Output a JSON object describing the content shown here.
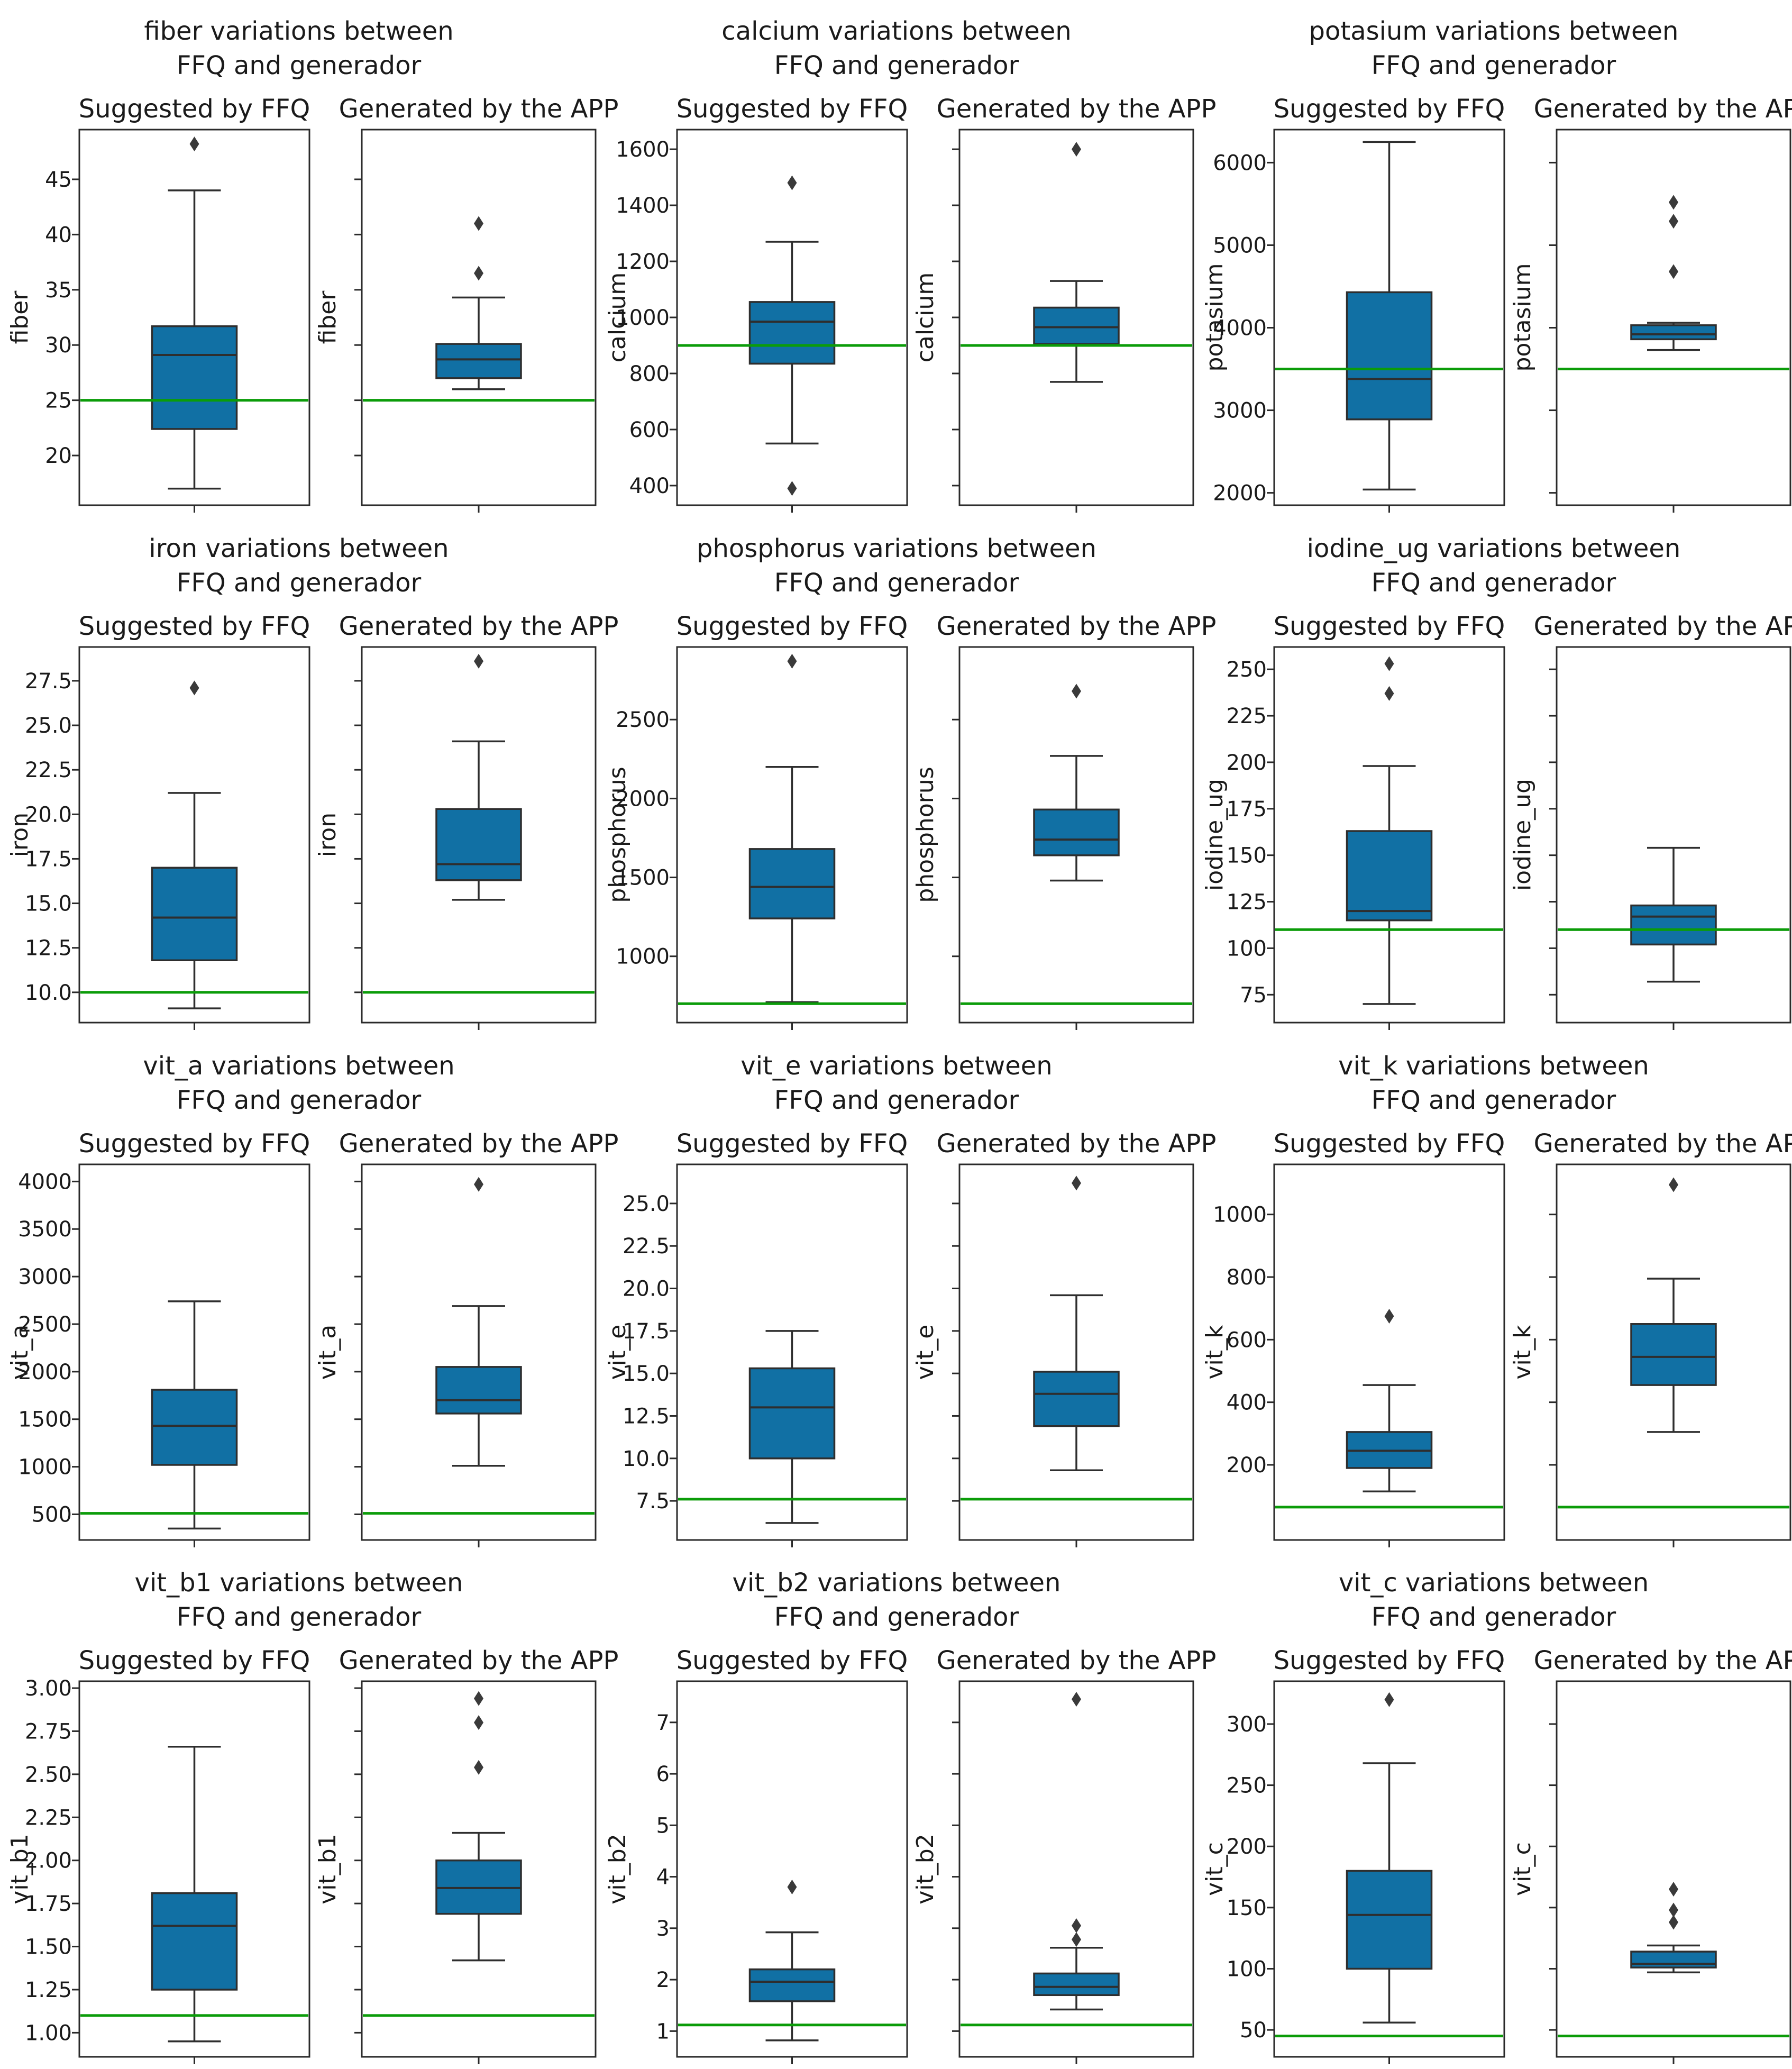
{
  "figure": {
    "description": "Grid of 12 paired box plots comparing nutrient distributions between FFQ suggestions and APP generated menus",
    "rows": 4,
    "cols": 3
  },
  "subplot_titles": {
    "left": "Suggested by FFQ",
    "right": "Generated by the APP"
  },
  "colors": {
    "box_fill": "#1170a4",
    "box_edge": "#2e2e2e",
    "median": "#2e2e2e",
    "whisker": "#2e2e2e",
    "outlier": "#3a3a3a",
    "reference_line": "#0b9c09",
    "spine": "#2a2a2a",
    "text": "#1a1a1a",
    "background": "#ffffff"
  },
  "chart_data": [
    {
      "type": "boxplot",
      "nutrient": "fiber",
      "title": "fiber variations between\nFFQ and generador",
      "title_lines": [
        "fiber variations between",
        "FFQ and generador"
      ],
      "ylabel": "fiber",
      "ylim": [
        15.5,
        49.5
      ],
      "yticks": [
        20,
        25,
        30,
        35,
        40,
        45
      ],
      "yticklabels": [
        "20",
        "25",
        "30",
        "35",
        "40",
        "45"
      ],
      "ref_line": 25,
      "series": [
        {
          "name": "Suggested by FFQ",
          "whislo": 17.0,
          "q1": 22.4,
          "med": 29.1,
          "q3": 31.7,
          "whishi": 44.0,
          "outliers": [
            48.2
          ]
        },
        {
          "name": "Generated by the APP",
          "whislo": 26.0,
          "q1": 27.0,
          "med": 28.7,
          "q3": 30.1,
          "whishi": 34.3,
          "outliers": [
            36.5,
            41.0
          ]
        }
      ]
    },
    {
      "type": "boxplot",
      "nutrient": "calcium",
      "title": "calcium variations between\nFFQ and generador",
      "title_lines": [
        "calcium variations between",
        "FFQ and generador"
      ],
      "ylabel": "calcium",
      "ylim": [
        330,
        1670
      ],
      "yticks": [
        400,
        600,
        800,
        1000,
        1200,
        1400,
        1600
      ],
      "yticklabels": [
        "400",
        "600",
        "800",
        "1000",
        "1200",
        "1400",
        "1600"
      ],
      "ref_line": 900,
      "series": [
        {
          "name": "Suggested by FFQ",
          "whislo": 550,
          "q1": 835,
          "med": 985,
          "q3": 1055,
          "whishi": 1270,
          "outliers": [
            390,
            1480
          ]
        },
        {
          "name": "Generated by the APP",
          "whislo": 770,
          "q1": 905,
          "med": 965,
          "q3": 1035,
          "whishi": 1130,
          "outliers": [
            1600
          ]
        }
      ]
    },
    {
      "type": "boxplot",
      "nutrient": "potasium",
      "title": "potasium variations between\nFFQ and generador",
      "title_lines": [
        "potasium variations between",
        "FFQ and generador"
      ],
      "ylabel": "potasium",
      "ylim": [
        1850,
        6400
      ],
      "yticks": [
        2000,
        3000,
        4000,
        5000,
        6000
      ],
      "yticklabels": [
        "2000",
        "3000",
        "4000",
        "5000",
        "6000"
      ],
      "ref_line": 3500,
      "series": [
        {
          "name": "Suggested by FFQ",
          "whislo": 2040,
          "q1": 2890,
          "med": 3380,
          "q3": 4430,
          "whishi": 6250,
          "outliers": []
        },
        {
          "name": "Generated by the APP",
          "whislo": 3730,
          "q1": 3860,
          "med": 3920,
          "q3": 4030,
          "whishi": 4060,
          "outliers": [
            4680,
            5290,
            5520
          ]
        }
      ]
    },
    {
      "type": "boxplot",
      "nutrient": "iron",
      "title": "iron variations between\nFFQ and generador",
      "title_lines": [
        "iron variations between",
        "FFQ and generador"
      ],
      "ylabel": "iron",
      "ylim": [
        8.3,
        29.4
      ],
      "yticks": [
        10.0,
        12.5,
        15.0,
        17.5,
        20.0,
        22.5,
        25.0,
        27.5
      ],
      "yticklabels": [
        "10.0",
        "12.5",
        "15.0",
        "17.5",
        "20.0",
        "22.5",
        "25.0",
        "27.5"
      ],
      "ref_line": 10.0,
      "series": [
        {
          "name": "Suggested by FFQ",
          "whislo": 9.1,
          "q1": 11.8,
          "med": 14.2,
          "q3": 17.0,
          "whishi": 21.2,
          "outliers": [
            27.1
          ]
        },
        {
          "name": "Generated by the APP",
          "whislo": 15.2,
          "q1": 16.3,
          "med": 17.2,
          "q3": 20.3,
          "whishi": 24.1,
          "outliers": [
            28.6
          ]
        }
      ]
    },
    {
      "type": "boxplot",
      "nutrient": "phosphorus",
      "title": "phosphorus variations between\nFFQ and generador",
      "title_lines": [
        "phosphorus variations between",
        "FFQ and generador"
      ],
      "ylabel": "phosphorus",
      "ylim": [
        580,
        2960
      ],
      "yticks": [
        1000,
        1500,
        2000,
        2500
      ],
      "yticklabels": [
        "1000",
        "1500",
        "2000",
        "2500"
      ],
      "ref_line": 700,
      "series": [
        {
          "name": "Suggested by FFQ",
          "whislo": 710,
          "q1": 1240,
          "med": 1440,
          "q3": 1680,
          "whishi": 2200,
          "outliers": [
            2870
          ]
        },
        {
          "name": "Generated by the APP",
          "whislo": 1480,
          "q1": 1640,
          "med": 1740,
          "q3": 1930,
          "whishi": 2270,
          "outliers": [
            2680
          ]
        }
      ]
    },
    {
      "type": "boxplot",
      "nutrient": "iodine_ug",
      "title": "iodine_ug variations between\nFFQ and generador",
      "title_lines": [
        "iodine_ug variations between",
        "FFQ and generador"
      ],
      "ylabel": "iodine_ug",
      "ylim": [
        60,
        262
      ],
      "yticks": [
        75,
        100,
        125,
        150,
        175,
        200,
        225,
        250
      ],
      "yticklabels": [
        "75",
        "100",
        "125",
        "150",
        "175",
        "200",
        "225",
        "250"
      ],
      "ref_line": 110,
      "series": [
        {
          "name": "Suggested by FFQ",
          "whislo": 70,
          "q1": 115,
          "med": 120,
          "q3": 163,
          "whishi": 198,
          "outliers": [
            237,
            253
          ]
        },
        {
          "name": "Generated by the APP",
          "whislo": 82,
          "q1": 102,
          "med": 117,
          "q3": 123,
          "whishi": 154,
          "outliers": []
        }
      ]
    },
    {
      "type": "boxplot",
      "nutrient": "vit_a",
      "title": "vit_a variations between\nFFQ and generador",
      "title_lines": [
        "vit_a variations between",
        "FFQ and generador"
      ],
      "ylabel": "vit_a",
      "ylim": [
        230,
        4180
      ],
      "yticks": [
        500,
        1000,
        1500,
        2000,
        2500,
        3000,
        3500,
        4000
      ],
      "yticklabels": [
        "500",
        "1000",
        "1500",
        "2000",
        "2500",
        "3000",
        "3500",
        "4000"
      ],
      "ref_line": 510,
      "series": [
        {
          "name": "Suggested by FFQ",
          "whislo": 350,
          "q1": 1020,
          "med": 1430,
          "q3": 1810,
          "whishi": 2740,
          "outliers": []
        },
        {
          "name": "Generated by the APP",
          "whislo": 1010,
          "q1": 1560,
          "med": 1700,
          "q3": 2050,
          "whishi": 2690,
          "outliers": [
            3970
          ]
        }
      ]
    },
    {
      "type": "boxplot",
      "nutrient": "vit_e",
      "title": "vit_e variations between\nFFQ and generador",
      "title_lines": [
        "vit_e variations between",
        "FFQ and generador"
      ],
      "ylabel": "vit_e",
      "ylim": [
        5.2,
        27.3
      ],
      "yticks": [
        7.5,
        10.0,
        12.5,
        15.0,
        17.5,
        20.0,
        22.5,
        25.0
      ],
      "yticklabels": [
        "7.5",
        "10.0",
        "12.5",
        "15.0",
        "17.5",
        "20.0",
        "22.5",
        "25.0"
      ],
      "ref_line": 7.6,
      "series": [
        {
          "name": "Suggested by FFQ",
          "whislo": 6.2,
          "q1": 10.0,
          "med": 13.0,
          "q3": 15.3,
          "whishi": 17.5,
          "outliers": []
        },
        {
          "name": "Generated by the APP",
          "whislo": 9.3,
          "q1": 11.9,
          "med": 13.8,
          "q3": 15.1,
          "whishi": 19.6,
          "outliers": [
            26.2
          ]
        }
      ]
    },
    {
      "type": "boxplot",
      "nutrient": "vit_k",
      "title": "vit_k variations between\nFFQ and generador",
      "title_lines": [
        "vit_k variations between",
        "FFQ and generador"
      ],
      "ylabel": "vit_k",
      "ylim": [
        -40,
        1160
      ],
      "yticks": [
        200,
        400,
        600,
        800,
        1000
      ],
      "yticklabels": [
        "200",
        "400",
        "600",
        "800",
        "1000"
      ],
      "ref_line": 65,
      "series": [
        {
          "name": "Suggested by FFQ",
          "whislo": 115,
          "q1": 190,
          "med": 245,
          "q3": 305,
          "whishi": 455,
          "outliers": [
            675
          ]
        },
        {
          "name": "Generated by the APP",
          "whislo": 305,
          "q1": 455,
          "med": 545,
          "q3": 650,
          "whishi": 795,
          "outliers": [
            1095
          ]
        }
      ]
    },
    {
      "type": "boxplot",
      "nutrient": "vit_b1",
      "title": "vit_b1 variations between\nFFQ and generador",
      "title_lines": [
        "vit_b1 variations between",
        "FFQ and generador"
      ],
      "ylabel": "vit_b1",
      "ylim": [
        0.86,
        3.04
      ],
      "yticks": [
        1.0,
        1.25,
        1.5,
        1.75,
        2.0,
        2.25,
        2.5,
        2.75,
        3.0
      ],
      "yticklabels": [
        "1.00",
        "1.25",
        "1.50",
        "1.75",
        "2.00",
        "2.25",
        "2.50",
        "2.75",
        "3.00"
      ],
      "ref_line": 1.1,
      "series": [
        {
          "name": "Suggested by FFQ",
          "whislo": 0.95,
          "q1": 1.25,
          "med": 1.62,
          "q3": 1.81,
          "whishi": 2.66,
          "outliers": []
        },
        {
          "name": "Generated by the APP",
          "whislo": 1.42,
          "q1": 1.69,
          "med": 1.84,
          "q3": 2.0,
          "whishi": 2.16,
          "outliers": [
            2.54,
            2.8,
            2.94
          ]
        }
      ]
    },
    {
      "type": "boxplot",
      "nutrient": "vit_b2",
      "title": "vit_b2 variations between\nFFQ and generador",
      "title_lines": [
        "vit_b2 variations between",
        "FFQ and generador"
      ],
      "ylabel": "vit_b2",
      "ylim": [
        0.5,
        7.8
      ],
      "yticks": [
        1,
        2,
        3,
        4,
        5,
        6,
        7
      ],
      "yticklabels": [
        "1",
        "2",
        "3",
        "4",
        "5",
        "6",
        "7"
      ],
      "ref_line": 1.12,
      "series": [
        {
          "name": "Suggested by FFQ",
          "whislo": 0.82,
          "q1": 1.58,
          "med": 1.96,
          "q3": 2.2,
          "whishi": 2.92,
          "outliers": [
            3.8
          ]
        },
        {
          "name": "Generated by the APP",
          "whislo": 1.42,
          "q1": 1.7,
          "med": 1.86,
          "q3": 2.12,
          "whishi": 2.62,
          "outliers": [
            2.78,
            3.05,
            7.45
          ]
        }
      ]
    },
    {
      "type": "boxplot",
      "nutrient": "vit_c",
      "title": "vit_c variations between\nFFQ and generador",
      "title_lines": [
        "vit_c variations between",
        "FFQ and generador"
      ],
      "ylabel": "vit_c",
      "ylim": [
        28,
        335
      ],
      "yticks": [
        50,
        100,
        150,
        200,
        250,
        300
      ],
      "yticklabels": [
        "50",
        "100",
        "150",
        "200",
        "250",
        "300"
      ],
      "ref_line": 45,
      "series": [
        {
          "name": "Suggested by FFQ",
          "whislo": 56,
          "q1": 100,
          "med": 144,
          "q3": 180,
          "whishi": 268,
          "outliers": [
            320
          ]
        },
        {
          "name": "Generated by the APP",
          "whislo": 97,
          "q1": 101,
          "med": 104,
          "q3": 114,
          "whishi": 119,
          "outliers": [
            138,
            148,
            165
          ]
        }
      ]
    }
  ]
}
